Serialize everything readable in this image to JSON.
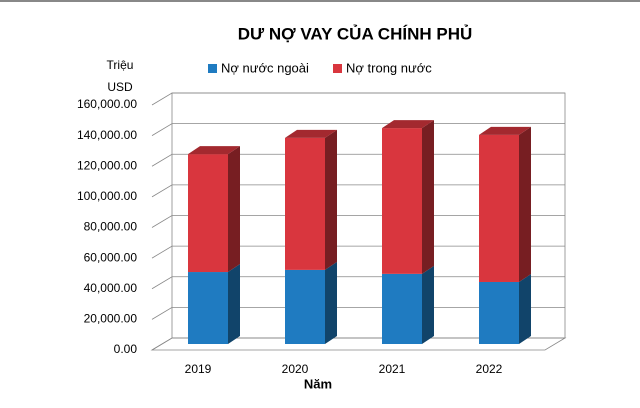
{
  "chart_data": {
    "type": "bar3d_stacked",
    "title": "DƯ NỢ VAY CỦA CHÍNH PHỦ",
    "y_label": "Triệu USD",
    "x_label": "Năm",
    "categories": [
      "2019",
      "2020",
      "2021",
      "2022"
    ],
    "series": [
      {
        "name": "Nợ nước ngoài",
        "color": "#1f7bc1",
        "values": [
          47000,
          48400,
          45800,
          40500
        ]
      },
      {
        "name": "Nợ trong nước",
        "color": "#d9363e",
        "values": [
          77000,
          86200,
          95200,
          96100
        ]
      }
    ],
    "ylim": [
      0,
      160000
    ],
    "yticks": [
      {
        "value": 0,
        "label": "0.00"
      },
      {
        "value": 20000,
        "label": "20,000.00"
      },
      {
        "value": 40000,
        "label": "40,000.00"
      },
      {
        "value": 60000,
        "label": "60,000.00"
      },
      {
        "value": 80000,
        "label": "80,000.00"
      },
      {
        "value": 100000,
        "label": "100,000.00"
      },
      {
        "value": 120000,
        "label": "120,000.00"
      },
      {
        "value": 140000,
        "label": "140,000.00"
      },
      {
        "value": 160000,
        "label": "160,000.00"
      }
    ],
    "grid": true
  }
}
